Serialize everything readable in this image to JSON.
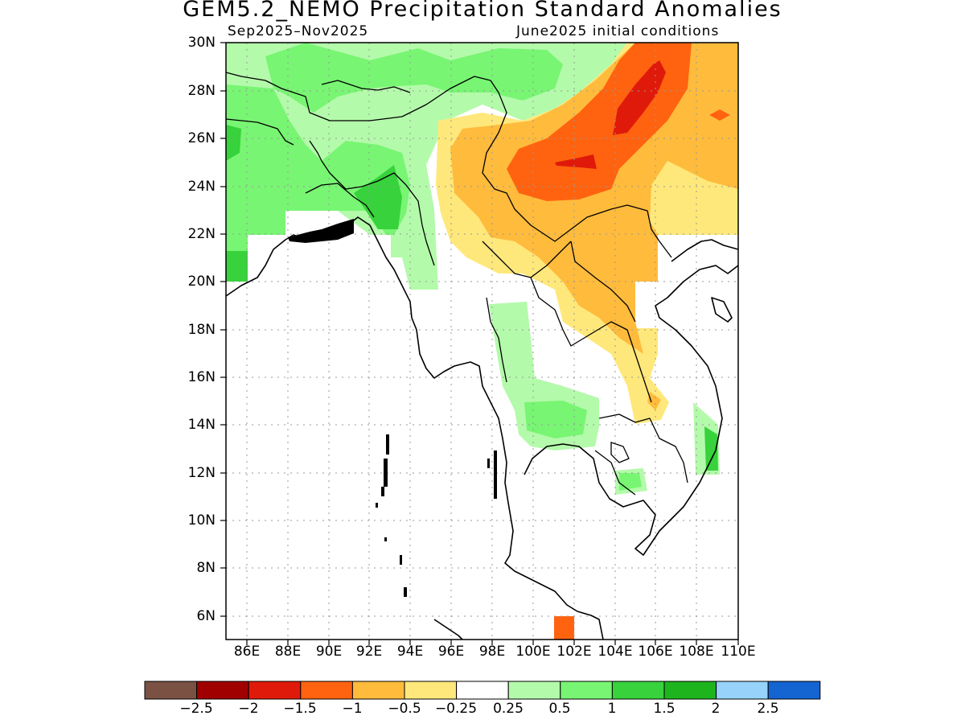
{
  "title": "GEM5.2_NEMO Precipitation Standard Anomalies",
  "period": "Sep2025–Nov2025",
  "init": "June2025 initial conditions",
  "lat_labels": [
    "30N",
    "28N",
    "26N",
    "24N",
    "22N",
    "20N",
    "18N",
    "16N",
    "14N",
    "12N",
    "10N",
    "8N",
    "6N"
  ],
  "lon_labels": [
    "86E",
    "88E",
    "90E",
    "92E",
    "94E",
    "96E",
    "98E",
    "100E",
    "102E",
    "104E",
    "106E",
    "108E",
    "110E"
  ],
  "colorbar": {
    "colors": [
      "#7a5143",
      "#a00000",
      "#e01a0a",
      "#ff6310",
      "#ffbb3c",
      "#ffe87b",
      "#ffffff",
      "#b4faab",
      "#78f573",
      "#37d23c",
      "#1eb41e",
      "#96d2fa",
      "#1464d2"
    ],
    "labels": [
      "−2.5",
      "−2",
      "−1.5",
      "−1",
      "−0.5",
      "−0.25",
      "0.25",
      "0.5",
      "1",
      "1.5",
      "2",
      "2.5"
    ]
  },
  "map": {
    "lon_range": [
      85,
      110
    ],
    "lat_range": [
      5,
      30
    ],
    "grid": true,
    "palette": {
      "pos_025_05": "#b4faab",
      "pos_05_1": "#78f573",
      "pos_1_15": "#37d23c",
      "neg_025_05": "#ffe87b",
      "neg_05_1": "#ffbb3c",
      "neg_1_15": "#ff6310",
      "neg_15_2": "#e01a0a"
    }
  }
}
